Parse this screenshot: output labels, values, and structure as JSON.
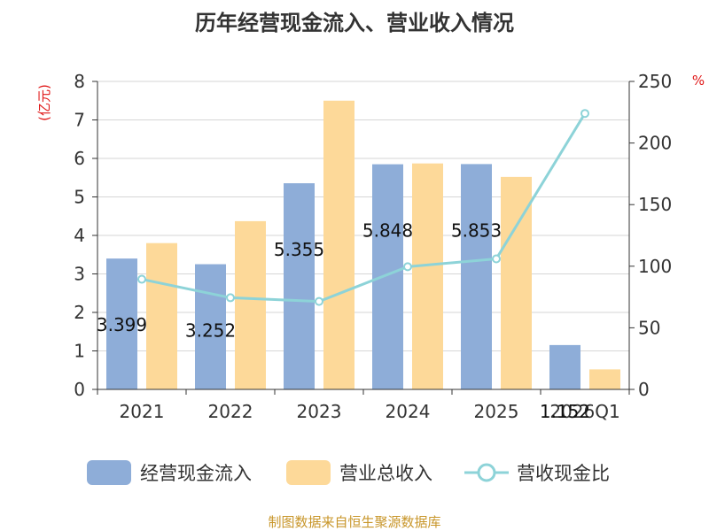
{
  "chart_data": {
    "type": "bar",
    "title": "历年经营现金流入、营业收入情况",
    "categories": [
      "2021",
      "2022",
      "2023",
      "2024",
      "2025",
      "2026Q1"
    ],
    "ylabel_left": "(亿元)",
    "ylabel_right": "%",
    "ylim_left": [
      0,
      8
    ],
    "yticks_left": [
      "0",
      "1",
      "2",
      "3",
      "4",
      "5",
      "6",
      "7",
      "8"
    ],
    "ylim_right": [
      0,
      250
    ],
    "yticks_right": [
      "0",
      "50",
      "100",
      "150",
      "200",
      "250"
    ],
    "grid": true,
    "legend_position": "bottom",
    "series": [
      {
        "name": "经营现金流入",
        "kind": "bar",
        "axis": "left",
        "color": "#8eadd8",
        "values": [
          3.399,
          3.252,
          5.355,
          5.848,
          5.853,
          1.152
        ],
        "labels": [
          "3.399",
          "3.252",
          "5.355",
          "5.848",
          "5.853",
          "1.152"
        ]
      },
      {
        "name": "营业总收入",
        "kind": "bar",
        "axis": "left",
        "color": "#fdd999",
        "values": [
          3.8,
          4.37,
          7.5,
          5.87,
          5.52,
          0.52
        ]
      },
      {
        "name": "营收现金比",
        "kind": "line",
        "axis": "right",
        "color": "#8dd3d8",
        "values": [
          89.4,
          74.4,
          71.4,
          99.6,
          106.0,
          224.0
        ]
      }
    ]
  },
  "footer": {
    "source": "制图数据来自恒生聚源数据库"
  }
}
